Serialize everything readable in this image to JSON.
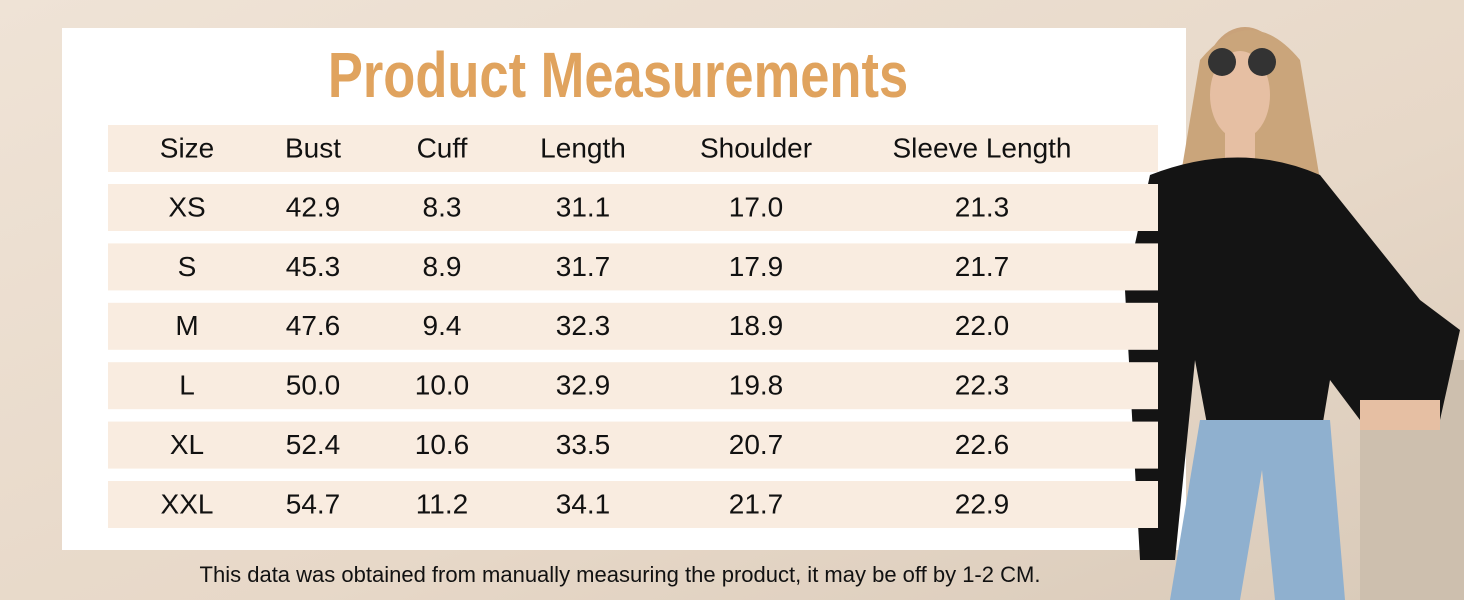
{
  "header": {
    "title": "Product Measurements"
  },
  "table": {
    "columns": [
      "Size",
      "Bust",
      "Cuff",
      "Length",
      "Shoulder",
      "Sleeve Length"
    ],
    "rows": [
      [
        "XS",
        "42.9",
        "8.3",
        "31.1",
        "17.0",
        "21.3"
      ],
      [
        "S",
        "45.3",
        "8.9",
        "31.7",
        "17.9",
        "21.7"
      ],
      [
        "M",
        "47.6",
        "9.4",
        "32.3",
        "18.9",
        "22.0"
      ],
      [
        "L",
        "50.0",
        "10.0",
        "32.9",
        "19.8",
        "22.3"
      ],
      [
        "XL",
        "52.4",
        "10.6",
        "33.5",
        "20.7",
        "22.6"
      ],
      [
        "XXL",
        "54.7",
        "11.2",
        "34.1",
        "21.7",
        "22.9"
      ]
    ]
  },
  "note": "This data was obtained from manually measuring the product, it may be off by 1-2 CM."
}
